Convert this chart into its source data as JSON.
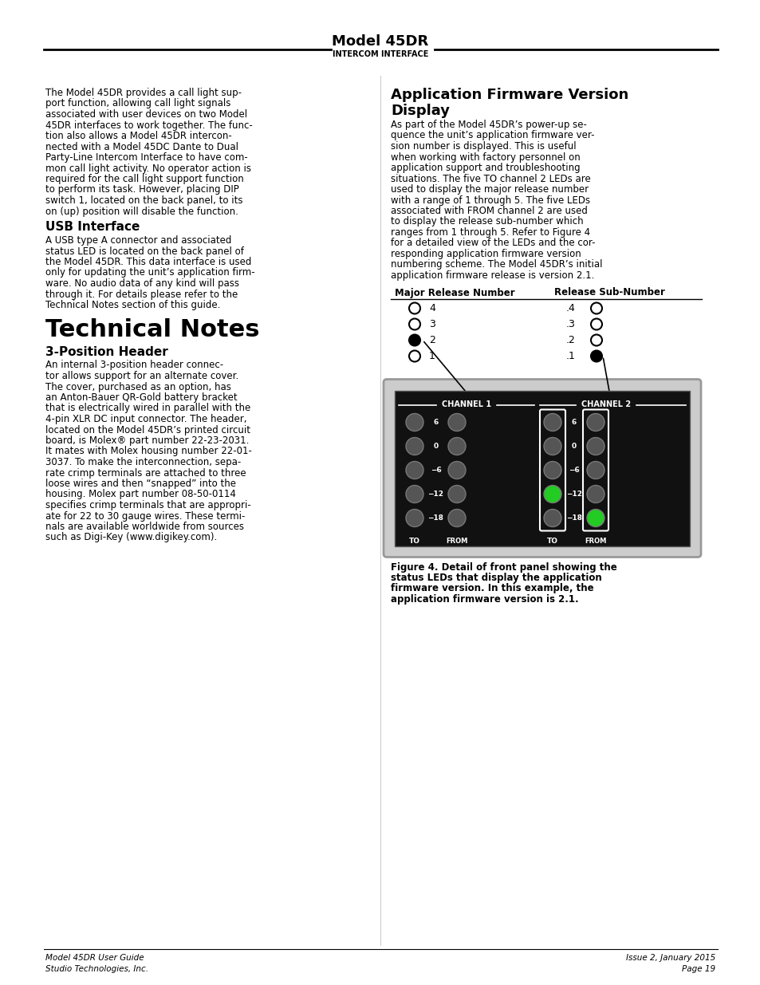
{
  "page_bg": "#ffffff",
  "header": {
    "title": "Model 45DR",
    "subtitle": "INTERCOM INTERFACE"
  },
  "footer_left": [
    "Model 45DR User Guide",
    "Studio Technologies, Inc."
  ],
  "footer_right": [
    "Issue 2, January 2015",
    "Page 19"
  ],
  "left_col": {
    "intro_text": "The Model 45DR provides a call light sup-\nport function, allowing call light signals\nassociated with user devices on two Model\n45DR interfaces to work together. The func-\ntion also allows a Model 45DR intercon-\nnected with a Model 45DC Dante to Dual\nParty-Line Intercom Interface to have com-\nmon call light activity. No operator action is\nrequired for the call light support function\nto perform its task. However, placing DIP\nswitch 1, located on the back panel, to its\non (up) position will disable the function.",
    "usb_title": "USB Interface",
    "usb_text": "A USB type A connector and associated\nstatus LED is located on the back panel of\nthe Model 45DR. This data interface is used\nonly for updating the unit’s application firm-\nware. No audio data of any kind will pass\nthrough it. For details please refer to the\nTechnical Notes section of this guide.",
    "tech_title": "Technical Notes",
    "pos_title": "3-Position Header",
    "pos_text": "An internal 3-position header connec-\ntor allows support for an alternate cover.\nThe cover, purchased as an option, has\nan Anton-Bauer QR-Gold battery bracket\nthat is electrically wired in parallel with the\n4-pin XLR DC input connector. The header,\nlocated on the Model 45DR’s printed circuit\nboard, is Molex® part number 22-23-2031.\nIt mates with Molex housing number 22-01-\n3037. To make the interconnection, sepa-\nrate crimp terminals are attached to three\nloose wires and then “snapped” into the\nhousing. Molex part number 08-50-0114\nspecifies crimp terminals that are appropri-\nate for 22 to 30 gauge wires. These termi-\nnals are available worldwide from sources\nsuch as Digi-Key (www.digikey.com)."
  },
  "right_col": {
    "app_title": "Application Firmware Version\nDisplay",
    "app_text": "As part of the Model 45DR’s power-up se-\nquence the unit’s application firmware ver-\nsion number is displayed. This is useful\nwhen working with factory personnel on\napplication support and troubleshooting\nsituations. The five TO channel 2 LEDs are\nused to display the major release number\nwith a range of 1 through 5. The five LEDs\nassociated with FROM channel 2 are used\nto display the release sub-number which\nranges from 1 through 5. Refer to Figure 4\nfor a detailed view of the LEDs and the cor-\nresponding application firmware version\nnumbering scheme. The Model 45DR’s initial\napplication firmware release is version 2.1.",
    "fig_caption": "Figure 4. Detail of front panel showing the\nstatus LEDs that display the application\nfirmware version. In this example, the\napplication firmware version is 2.1."
  }
}
